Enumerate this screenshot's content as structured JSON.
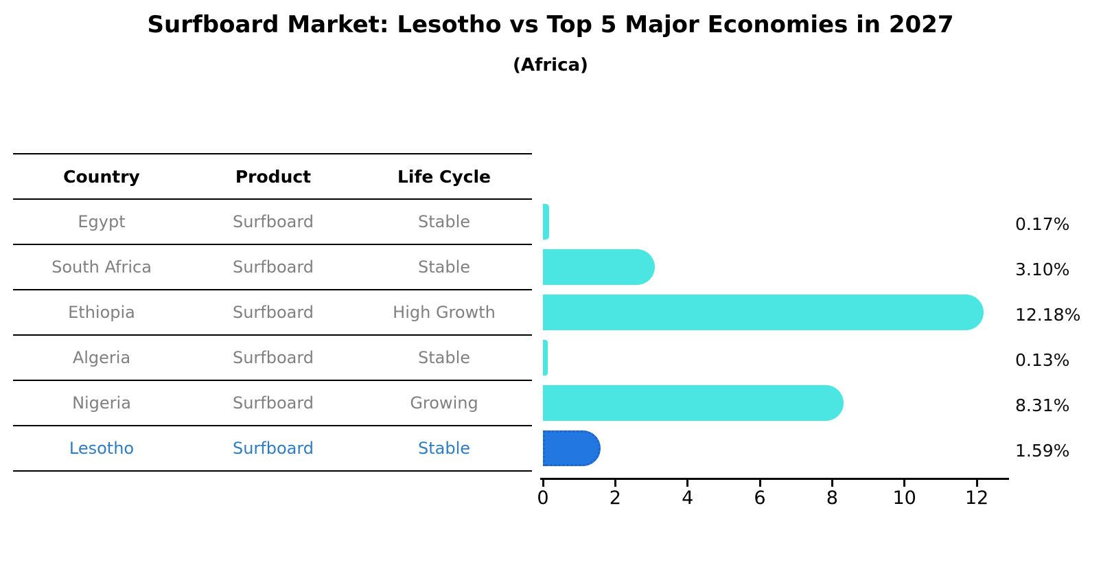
{
  "title": "Surfboard Market: Lesotho vs Top 5 Major Economies in 2027",
  "subtitle": "(Africa)",
  "table": {
    "headers": [
      "Country",
      "Product",
      "Life Cycle"
    ],
    "rows": [
      {
        "country": "Egypt",
        "product": "Surfboard",
        "life_cycle": "Stable",
        "highlight": false
      },
      {
        "country": "South Africa",
        "product": "Surfboard",
        "life_cycle": "Stable",
        "highlight": false
      },
      {
        "country": "Ethiopia",
        "product": "Surfboard",
        "life_cycle": "High Growth",
        "highlight": false
      },
      {
        "country": "Algeria",
        "product": "Surfboard",
        "life_cycle": "Stable",
        "highlight": false
      },
      {
        "country": "Nigeria",
        "product": "Surfboard",
        "life_cycle": "Growing",
        "highlight": false
      },
      {
        "country": "Lesotho",
        "product": "Surfboard",
        "life_cycle": "Stable",
        "highlight": true
      }
    ]
  },
  "chart_data": {
    "type": "bar",
    "orientation": "horizontal",
    "title": "Surfboard Market: Lesotho vs Top 5 Major Economies in 2027",
    "subtitle": "(Africa)",
    "categories": [
      "Egypt",
      "South Africa",
      "Ethiopia",
      "Algeria",
      "Nigeria",
      "Lesotho"
    ],
    "values": [
      0.17,
      3.1,
      12.18,
      0.13,
      8.31,
      1.59
    ],
    "value_labels": [
      "0.17%",
      "3.10%",
      "12.18%",
      "0.13%",
      "8.31%",
      "1.59%"
    ],
    "x_ticks": [
      0,
      2,
      4,
      6,
      8,
      10,
      12
    ],
    "x_tick_labels": [
      "0",
      "2",
      "4",
      "6",
      "8",
      "10",
      "12"
    ],
    "xlim": [
      0,
      12.9
    ],
    "grid": false,
    "legend": false,
    "highlight_index": 5,
    "colors": {
      "bar": "#4BE6E1",
      "highlight_bar": "#2277E0",
      "highlight_border": "#1F63C9",
      "highlight_text": "#2E7DC3",
      "table_text": "#808080",
      "axis": "#000000"
    }
  }
}
